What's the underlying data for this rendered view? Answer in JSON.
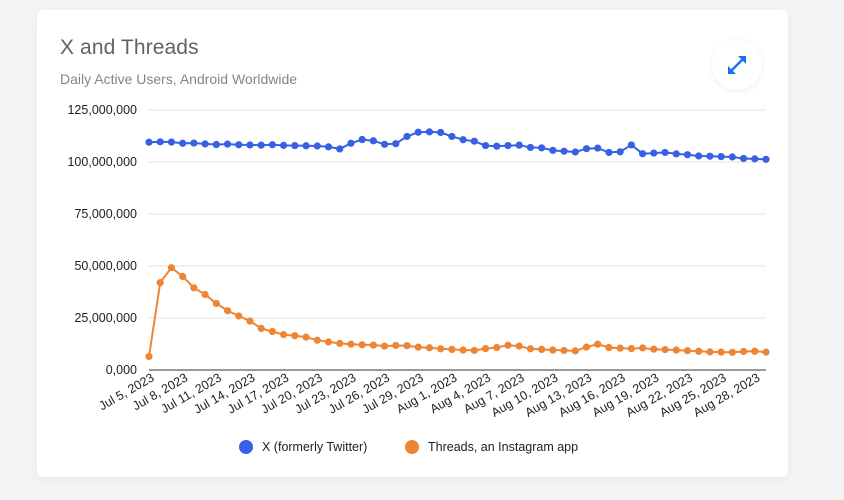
{
  "title": "X and Threads",
  "subtitle": "Daily Active Users, Android Worldwide",
  "icons": {
    "expand": "expand-arrows-icon"
  },
  "colors": {
    "x_series": "#3760e4",
    "threads_series": "#ee8535",
    "grid": "#e0e0e0",
    "axis": "#333333"
  },
  "chart_data": {
    "type": "line",
    "title": "X and Threads",
    "subtitle": "Daily Active Users, Android Worldwide",
    "ylim": [
      0,
      125000000
    ],
    "y_ticks": [
      "0,000",
      "25,000,000",
      "50,000,000",
      "75,000,000",
      "100,000,000",
      "125,000,000"
    ],
    "y_tick_values": [
      0,
      25000000,
      50000000,
      75000000,
      100000000,
      125000000
    ],
    "x_tick_labels": [
      "Jul 5, 2023",
      "Jul 8, 2023",
      "Jul 11, 2023",
      "Jul 14, 2023",
      "Jul 17, 2023",
      "Jul 20, 2023",
      "Jul 23, 2023",
      "Jul 26, 2023",
      "Jul 29, 2023",
      "Aug 1, 2023",
      "Aug 4, 2023",
      "Aug 7, 2023",
      "Aug 10, 2023",
      "Aug 13, 2023",
      "Aug 16, 2023",
      "Aug 19, 2023",
      "Aug 22, 2023",
      "Aug 25, 2023",
      "Aug 28, 2023"
    ],
    "x": [
      "Jul 5, 2023",
      "Jul 6, 2023",
      "Jul 7, 2023",
      "Jul 8, 2023",
      "Jul 9, 2023",
      "Jul 10, 2023",
      "Jul 11, 2023",
      "Jul 12, 2023",
      "Jul 13, 2023",
      "Jul 14, 2023",
      "Jul 15, 2023",
      "Jul 16, 2023",
      "Jul 17, 2023",
      "Jul 18, 2023",
      "Jul 19, 2023",
      "Jul 20, 2023",
      "Jul 21, 2023",
      "Jul 22, 2023",
      "Jul 23, 2023",
      "Jul 24, 2023",
      "Jul 25, 2023",
      "Jul 26, 2023",
      "Jul 27, 2023",
      "Jul 28, 2023",
      "Jul 29, 2023",
      "Jul 30, 2023",
      "Jul 31, 2023",
      "Aug 1, 2023",
      "Aug 2, 2023",
      "Aug 3, 2023",
      "Aug 4, 2023",
      "Aug 5, 2023",
      "Aug 6, 2023",
      "Aug 7, 2023",
      "Aug 8, 2023",
      "Aug 9, 2023",
      "Aug 10, 2023",
      "Aug 11, 2023",
      "Aug 12, 2023",
      "Aug 13, 2023",
      "Aug 14, 2023",
      "Aug 15, 2023",
      "Aug 16, 2023",
      "Aug 17, 2023",
      "Aug 18, 2023",
      "Aug 19, 2023",
      "Aug 20, 2023",
      "Aug 21, 2023",
      "Aug 22, 2023",
      "Aug 23, 2023",
      "Aug 24, 2023",
      "Aug 25, 2023",
      "Aug 26, 2023",
      "Aug 27, 2023",
      "Aug 28, 2023",
      "Aug 29, 2023"
    ],
    "series": [
      {
        "name": "X (formerly Twitter)",
        "color": "#3760e4",
        "values": [
          109500000,
          109700000,
          109600000,
          109000000,
          109100000,
          108700000,
          108400000,
          108600000,
          108300000,
          108200000,
          108100000,
          108300000,
          108000000,
          107900000,
          107800000,
          107700000,
          107300000,
          106300000,
          109000000,
          110800000,
          110200000,
          108500000,
          108800000,
          112300000,
          114300000,
          114500000,
          114200000,
          112300000,
          110700000,
          110000000,
          107900000,
          107600000,
          107900000,
          108100000,
          107000000,
          106800000,
          105600000,
          105200000,
          104800000,
          106400000,
          106700000,
          104600000,
          104900000,
          108200000,
          104000000,
          104300000,
          104600000,
          103900000,
          103500000,
          102900000,
          102800000,
          102600000,
          102400000,
          101700000,
          101500000,
          101300000
        ]
      },
      {
        "name": "Threads, an Instagram app",
        "color": "#ee8535",
        "values": [
          6500000,
          42000000,
          49200000,
          45000000,
          39500000,
          36300000,
          32000000,
          28500000,
          26000000,
          23500000,
          20000000,
          18500000,
          17000000,
          16500000,
          15800000,
          14300000,
          13500000,
          12800000,
          12400000,
          12100000,
          12000000,
          11500000,
          11800000,
          11700000,
          11000000,
          10700000,
          10200000,
          9900000,
          9600000,
          9400000,
          10300000,
          10800000,
          11900000,
          11500000,
          10200000,
          9900000,
          9600000,
          9400000,
          9200000,
          11000000,
          12400000,
          10800000,
          10500000,
          10300000,
          10600000,
          10000000,
          9800000,
          9600000,
          9300000,
          9000000,
          8700000,
          8600000,
          8500000,
          8900000,
          9000000,
          8600000
        ]
      }
    ],
    "legend": "bottom",
    "grid": true
  }
}
